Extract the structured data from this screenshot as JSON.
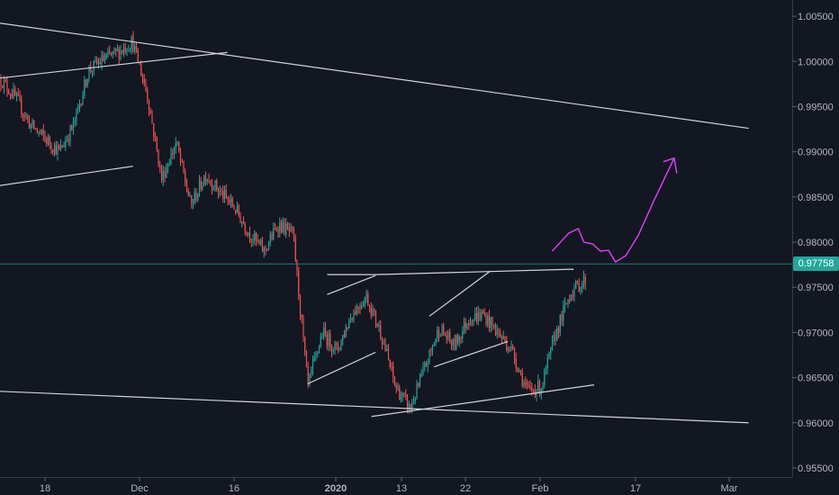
{
  "chart_data": {
    "type": "candlestick",
    "instrument": "",
    "ylim": [
      0.954,
      1.0068
    ],
    "y_ticks": [
      "1.00500",
      "1.00000",
      "0.99500",
      "0.99000",
      "0.98500",
      "0.98000",
      "0.97500",
      "0.97000",
      "0.96500",
      "0.96000",
      "0.95500"
    ],
    "y_tick_values": [
      1.005,
      1.0,
      0.995,
      0.99,
      0.985,
      0.98,
      0.975,
      0.97,
      0.965,
      0.96,
      0.955
    ],
    "x_ticks": [
      "18",
      "Dec",
      "16",
      "2020",
      "13",
      "22",
      "Feb",
      "17",
      "Mar"
    ],
    "x_tick_bold": [
      false,
      false,
      false,
      true,
      false,
      false,
      false,
      false,
      false
    ],
    "current_price": "0.97758",
    "current_price_value": 0.97758,
    "colors": {
      "background": "#131722",
      "up": "#26a69a",
      "down": "#ef5350",
      "trendline": "#d1d4dc",
      "projection": "#e040fb",
      "price_line": "#26a69a",
      "axis_text": "#b2b5be"
    },
    "price_path": [
      [
        0.998,
        0.998
      ],
      [
        0.992,
        0.996
      ],
      [
        0.988,
        0.993
      ],
      [
        0.987,
        0.9915
      ],
      [
        0.9905,
        0.99
      ],
      [
        0.9935,
        0.993
      ],
      [
        0.996,
        0.999
      ],
      [
        0.9975,
        1.0002
      ],
      [
        0.999,
        1.001
      ],
      [
        0.9995,
        1.0022
      ],
      [
        0.995,
        0.9965
      ],
      [
        0.99,
        0.987
      ],
      [
        0.986,
        0.991
      ],
      [
        0.987,
        0.984
      ],
      [
        0.9845,
        0.9875
      ],
      [
        0.9825,
        0.9855
      ],
      [
        0.9818,
        0.9838
      ],
      [
        0.98,
        0.981
      ],
      [
        0.978,
        0.979
      ],
      [
        0.98,
        0.982
      ],
      [
        0.9815,
        0.9808
      ],
      [
        0.9785,
        0.964
      ],
      [
        0.968,
        0.97
      ],
      [
        0.971,
        0.968
      ],
      [
        0.968,
        0.972
      ],
      [
        0.9745,
        0.974
      ],
      [
        0.9715,
        0.97
      ],
      [
        0.966,
        0.964
      ],
      [
        0.962,
        0.9615
      ],
      [
        0.964,
        0.966
      ],
      [
        0.969,
        0.9705
      ],
      [
        0.97,
        0.9685
      ],
      [
        0.972,
        0.9715
      ],
      [
        0.97,
        0.972
      ],
      [
        0.9735,
        0.97
      ],
      [
        0.969,
        0.968
      ],
      [
        0.966,
        0.9635
      ],
      [
        0.963,
        0.964
      ],
      [
        0.968,
        0.97
      ],
      [
        0.972,
        0.9745
      ],
      [
        0.976,
        0.9758
      ]
    ],
    "trendlines": [
      [
        [
          -0.005,
          1.0043
        ],
        [
          0.945,
          0.9926
        ]
      ],
      [
        [
          -0.005,
          0.9635
        ],
        [
          0.945,
          0.96
        ]
      ],
      [
        [
          -0.005,
          0.9981
        ],
        [
          0.287,
          1.001
        ]
      ],
      [
        [
          -0.005,
          0.9862
        ],
        [
          0.168,
          0.9884
        ]
      ],
      [
        [
          0.413,
          0.9764
        ],
        [
          0.474,
          0.9764
        ]
      ],
      [
        [
          0.474,
          0.9764
        ],
        [
          0.724,
          0.977
        ]
      ],
      [
        [
          0.413,
          0.9742
        ],
        [
          0.474,
          0.9763
        ]
      ],
      [
        [
          0.388,
          0.9643
        ],
        [
          0.474,
          0.9678
        ]
      ],
      [
        [
          0.542,
          0.9718
        ],
        [
          0.619,
          0.9768
        ]
      ],
      [
        [
          0.548,
          0.9662
        ],
        [
          0.641,
          0.969
        ]
      ],
      [
        [
          0.469,
          0.9607
        ],
        [
          0.75,
          0.9642
        ]
      ]
    ],
    "projection": [
      [
        0.697,
        0.979
      ],
      [
        0.718,
        0.981
      ],
      [
        0.73,
        0.9815
      ],
      [
        0.737,
        0.98
      ],
      [
        0.748,
        0.9798
      ],
      [
        0.758,
        0.979
      ],
      [
        0.768,
        0.9791
      ],
      [
        0.777,
        0.9778
      ],
      [
        0.79,
        0.9785
      ],
      [
        0.806,
        0.9808
      ],
      [
        0.825,
        0.9845
      ],
      [
        0.851,
        0.9893
      ]
    ]
  }
}
